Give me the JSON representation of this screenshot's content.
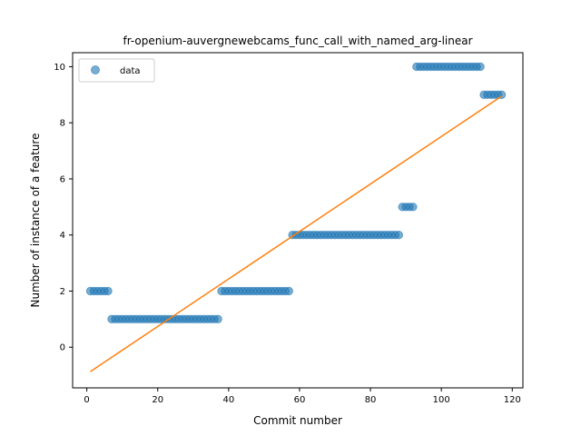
{
  "chart_data": {
    "type": "scatter",
    "title": "fr-openium-auvergnewebcams_func_call_with_named_arg-linear",
    "xlabel": "Commit number",
    "ylabel": "Number of instance of a feature",
    "xlim": [
      -4,
      123
    ],
    "ylim": [
      -1.45,
      10.5
    ],
    "xticks": [
      0,
      20,
      40,
      60,
      80,
      100,
      120
    ],
    "yticks": [
      0,
      2,
      4,
      6,
      8,
      10
    ],
    "grid": false,
    "legend": {
      "placement": "top-left",
      "entries": [
        "data"
      ]
    },
    "colors": {
      "points": "#1f77b4",
      "fit": "#ff7f0e"
    },
    "series": [
      {
        "name": "data",
        "kind": "scatter",
        "segments": [
          {
            "x_start": 1,
            "x_end": 6,
            "y": 2
          },
          {
            "x_start": 7,
            "x_end": 37,
            "y": 1
          },
          {
            "x_start": 38,
            "x_end": 57,
            "y": 2
          },
          {
            "x_start": 58,
            "x_end": 88,
            "y": 4
          },
          {
            "x_start": 89,
            "x_end": 92,
            "y": 5
          },
          {
            "x_start": 93,
            "x_end": 111,
            "y": 10
          },
          {
            "x_start": 112,
            "x_end": 117,
            "y": 9
          }
        ]
      },
      {
        "kind": "line",
        "x": [
          1,
          117
        ],
        "y": [
          -0.87,
          8.95
        ]
      }
    ]
  }
}
